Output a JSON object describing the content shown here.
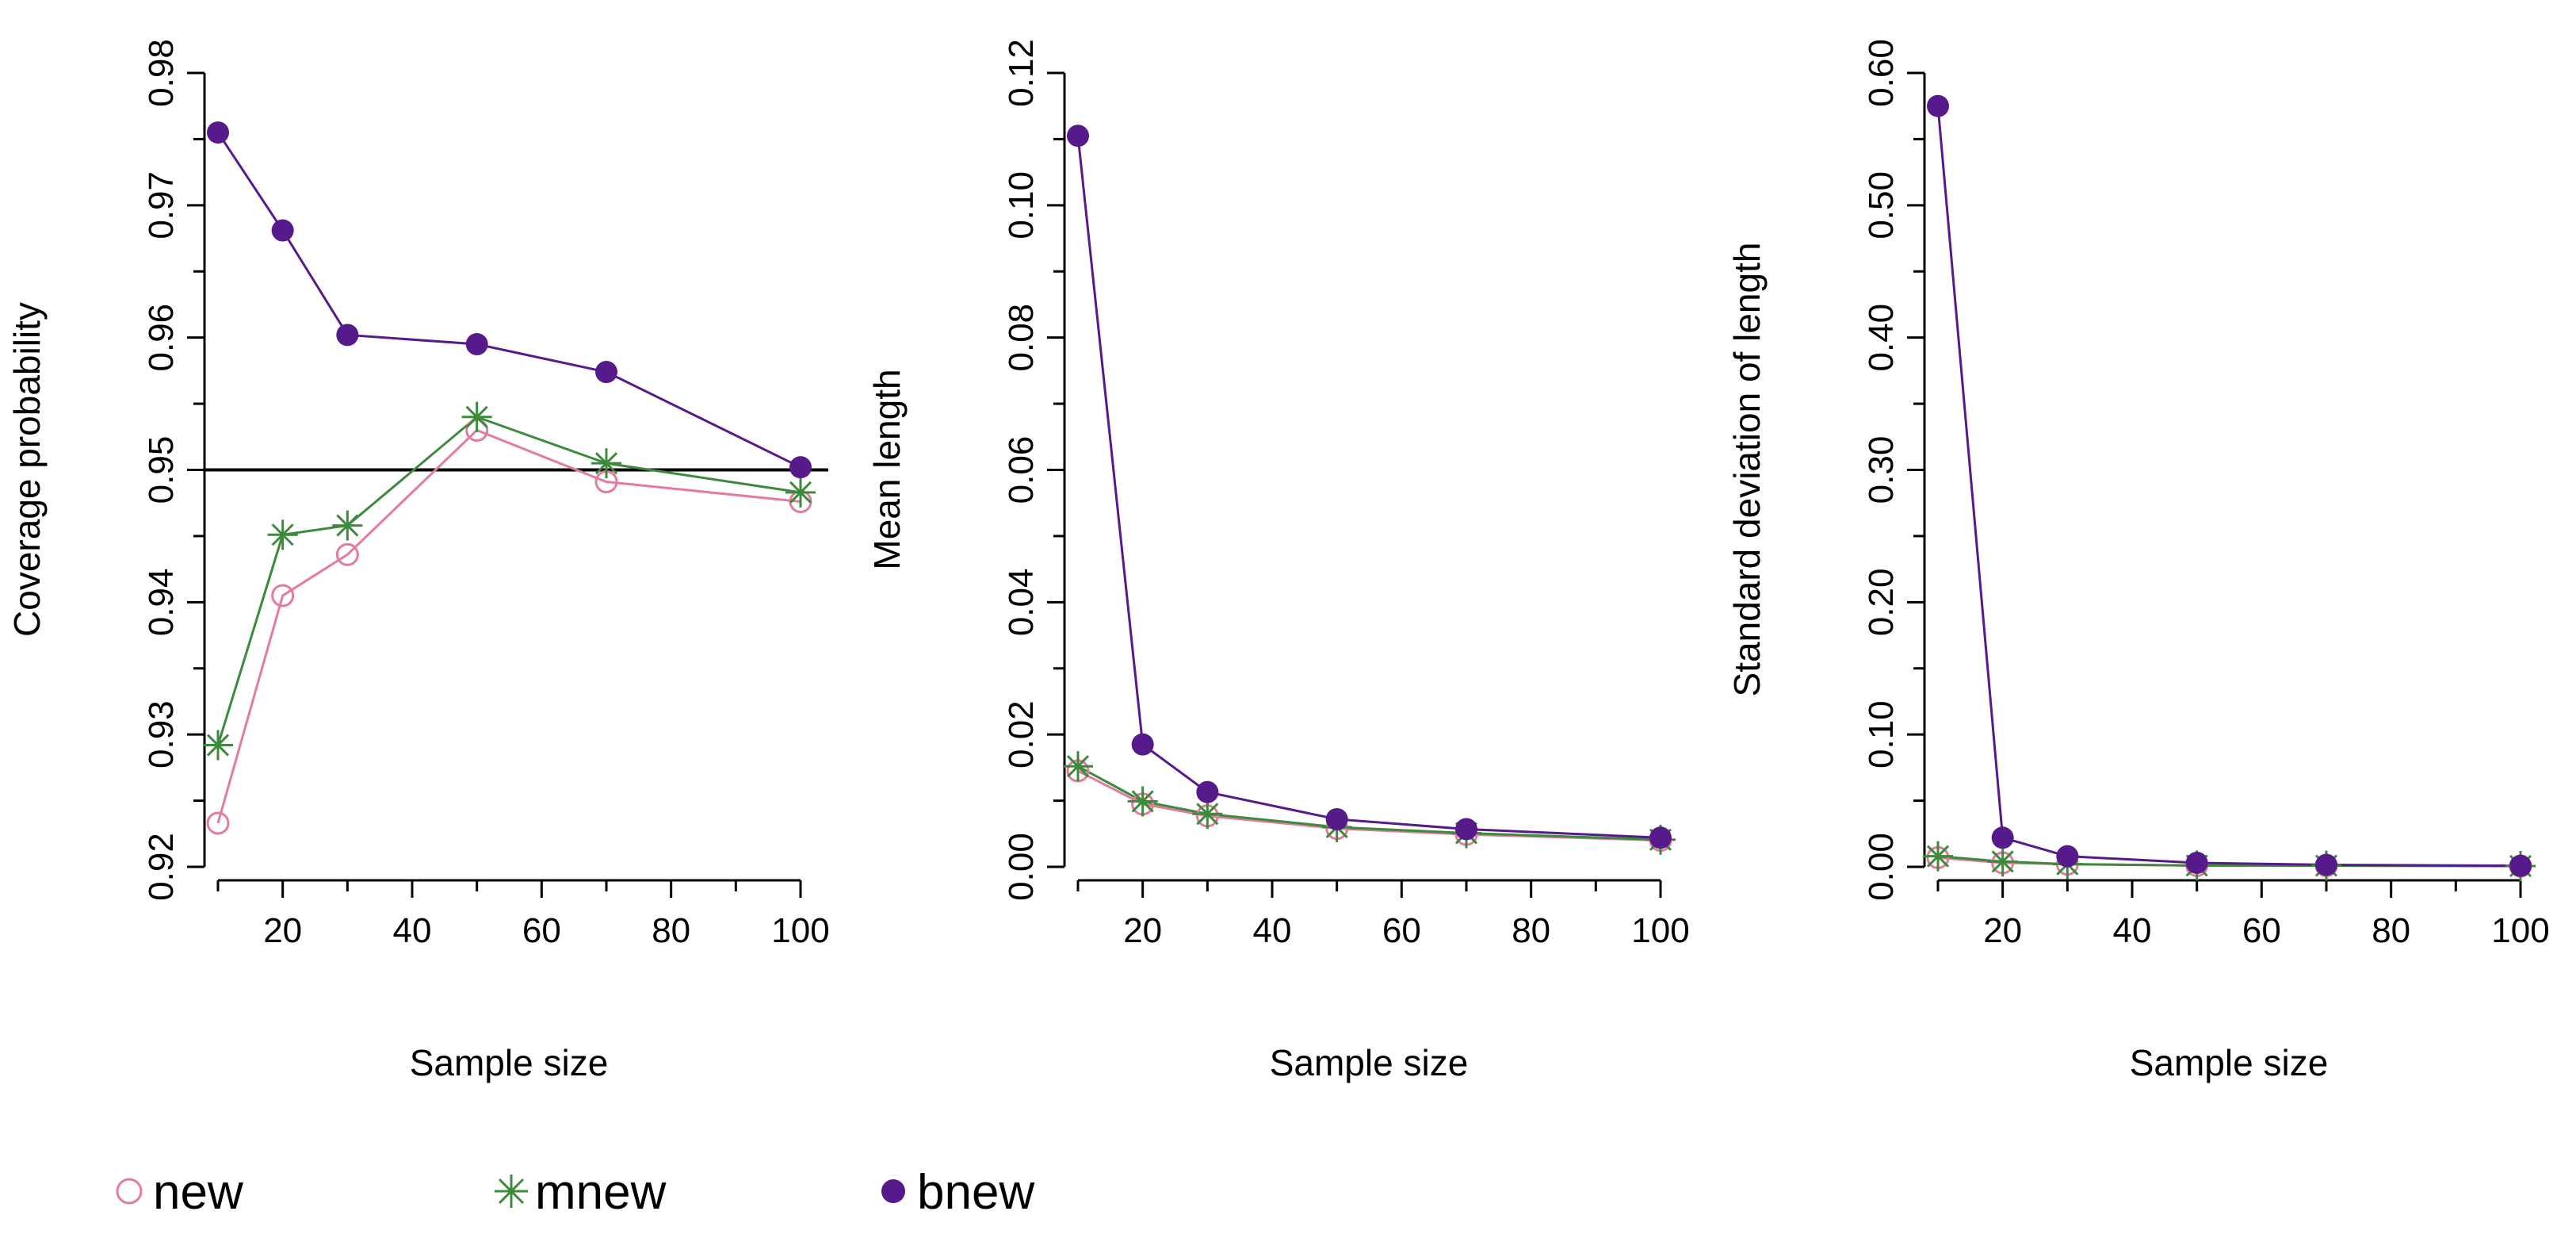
{
  "chart_data": [
    {
      "type": "line",
      "xlabel": "Sample size",
      "ylabel": "Coverage probability",
      "x": [
        10,
        20,
        30,
        50,
        70,
        100
      ],
      "xlim": [
        10,
        100
      ],
      "ylim": [
        0.92,
        0.98
      ],
      "x_ticks": [
        20,
        40,
        60,
        80,
        100
      ],
      "y_ticks": [
        0.92,
        0.93,
        0.94,
        0.95,
        0.96,
        0.97,
        0.98
      ],
      "y_tick_labels": [
        "0.92",
        "0.93",
        "0.94",
        "0.95",
        "0.96",
        "0.97",
        "0.98"
      ],
      "reference_line": 0.95,
      "series": [
        {
          "name": "new",
          "values": [
            0.9233,
            0.9405,
            0.9436,
            0.953,
            0.9491,
            0.9476
          ]
        },
        {
          "name": "mnew",
          "values": [
            0.9292,
            0.9451,
            0.9458,
            0.954,
            0.9505,
            0.9483
          ]
        },
        {
          "name": "bnew",
          "values": [
            0.9755,
            0.9681,
            0.9602,
            0.9595,
            0.9574,
            0.9502
          ]
        }
      ]
    },
    {
      "type": "line",
      "xlabel": "Sample size",
      "ylabel": "Mean length",
      "x": [
        10,
        20,
        30,
        50,
        70,
        100
      ],
      "xlim": [
        10,
        100
      ],
      "ylim": [
        0,
        0.12
      ],
      "x_ticks": [
        20,
        40,
        60,
        80,
        100
      ],
      "y_ticks": [
        0,
        0.02,
        0.04,
        0.06,
        0.08,
        0.1,
        0.12
      ],
      "y_tick_labels": [
        "0.00",
        "0.02",
        "0.04",
        "0.06",
        "0.08",
        "0.10",
        "0.12"
      ],
      "series": [
        {
          "name": "new",
          "values": [
            0.0145,
            0.0095,
            0.0077,
            0.0058,
            0.0049,
            0.004
          ]
        },
        {
          "name": "mnew",
          "values": [
            0.0152,
            0.0099,
            0.008,
            0.006,
            0.0051,
            0.0041
          ]
        },
        {
          "name": "bnew",
          "values": [
            0.1105,
            0.0185,
            0.0113,
            0.0072,
            0.0057,
            0.0044
          ]
        }
      ]
    },
    {
      "type": "line",
      "xlabel": "Sample size",
      "ylabel": "Standard deviation of length",
      "x": [
        10,
        20,
        30,
        50,
        70,
        100
      ],
      "xlim": [
        10,
        100
      ],
      "ylim": [
        0,
        0.6
      ],
      "x_ticks": [
        20,
        40,
        60,
        80,
        100
      ],
      "y_ticks": [
        0,
        0.1,
        0.2,
        0.3,
        0.4,
        0.5,
        0.6
      ],
      "y_tick_labels": [
        "0.00",
        "0.10",
        "0.20",
        "0.30",
        "0.40",
        "0.50",
        "0.60"
      ],
      "series": [
        {
          "name": "new",
          "values": [
            0.007,
            0.003,
            0.002,
            0.001,
            0.0008,
            0.0005
          ]
        },
        {
          "name": "mnew",
          "values": [
            0.008,
            0.004,
            0.002,
            0.001,
            0.0009,
            0.0006
          ]
        },
        {
          "name": "bnew",
          "values": [
            0.575,
            0.022,
            0.008,
            0.003,
            0.0015,
            0.0008
          ]
        }
      ]
    }
  ],
  "legend": {
    "items": [
      {
        "label": "new",
        "marker": "open-circle",
        "color": "#e37b9c"
      },
      {
        "label": "mnew",
        "marker": "asterisk",
        "color": "#3c8a3c"
      },
      {
        "label": "bnew",
        "marker": "filled-circle",
        "color": "#561a8b"
      }
    ]
  },
  "colors": {
    "new": "#e37b9c",
    "mnew": "#3c8a3c",
    "bnew": "#561a8b"
  }
}
